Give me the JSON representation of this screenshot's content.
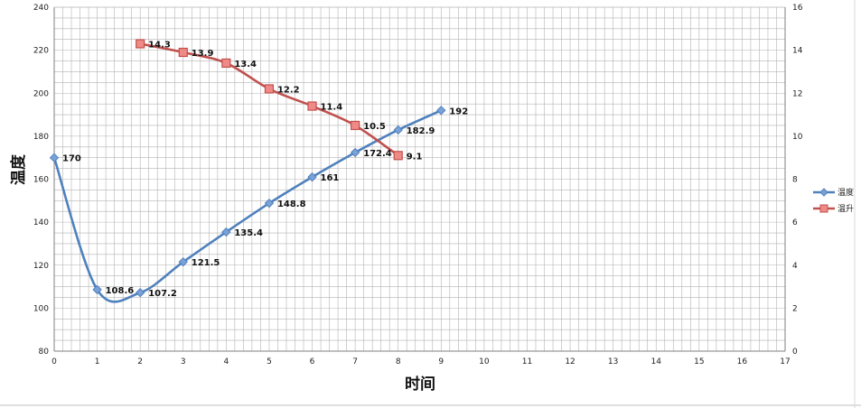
{
  "chart_data": {
    "type": "line",
    "xlabel": "时间",
    "ylabel": "温度",
    "xlim": [
      0,
      17
    ],
    "ylim": [
      80,
      240
    ],
    "y2lim": [
      0,
      16
    ],
    "x_ticks": [
      0,
      1,
      2,
      3,
      4,
      5,
      6,
      7,
      8,
      9,
      10,
      11,
      12,
      13,
      14,
      15,
      16,
      17
    ],
    "y_ticks": [
      80,
      100,
      120,
      140,
      160,
      180,
      200,
      220,
      240
    ],
    "y2_ticks": [
      0,
      2,
      4,
      6,
      8,
      10,
      12,
      14,
      16
    ],
    "grid": true,
    "legend_position": "right",
    "series": [
      {
        "name": "温度",
        "axis": "left",
        "color": "#4f81bd",
        "marker": "diamond",
        "x": [
          0,
          1,
          2,
          3,
          4,
          5,
          6,
          7,
          8,
          9
        ],
        "values": [
          170,
          108.6,
          107.2,
          121.5,
          135.4,
          148.8,
          161,
          172.4,
          182.9,
          192
        ],
        "labels": [
          "170",
          "108.6",
          "107.2",
          "121.5",
          "135.4",
          "148.8",
          "161",
          "172.4",
          "182.9",
          "192"
        ]
      },
      {
        "name": "温升",
        "axis": "right",
        "color": "#c0504d",
        "marker": "square",
        "x": [
          2,
          3,
          4,
          5,
          6,
          7,
          8
        ],
        "values": [
          14.3,
          13.9,
          13.4,
          12.2,
          11.4,
          10.5,
          9.1
        ],
        "labels": [
          "14.3",
          "13.9",
          "13.4",
          "12.2",
          "11.4",
          "10.5",
          "9.1"
        ]
      }
    ]
  }
}
